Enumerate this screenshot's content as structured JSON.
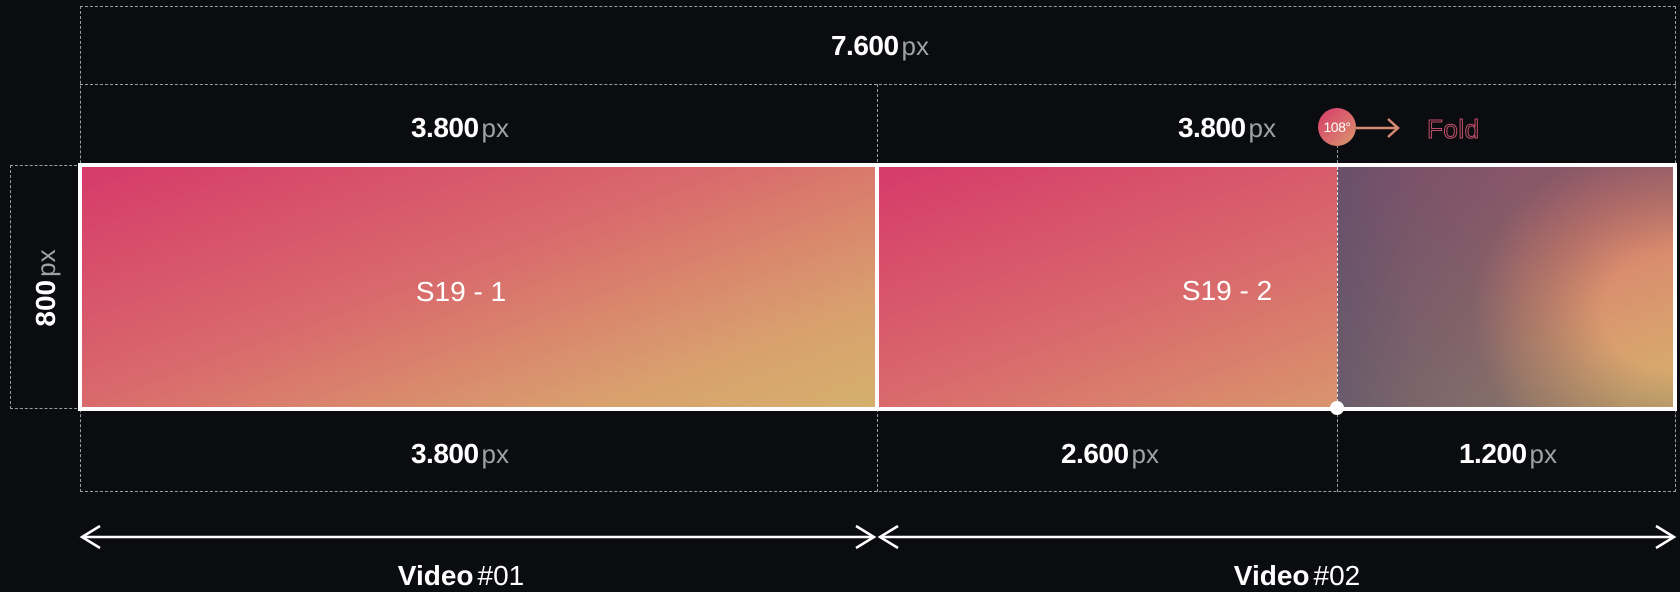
{
  "total_width": {
    "value": "7.600",
    "unit": "px"
  },
  "height": {
    "value": "800",
    "unit": "px"
  },
  "top_segments": [
    {
      "value": "3.800",
      "unit": "px"
    },
    {
      "value": "3.800",
      "unit": "px"
    }
  ],
  "fold": {
    "angle": "108°",
    "label": "Fold"
  },
  "panels": [
    {
      "label": "S19 - 1"
    },
    {
      "label": "S19 - 2"
    }
  ],
  "bottom_segments": [
    {
      "value": "3.800",
      "unit": "px"
    },
    {
      "value": "2.600",
      "unit": "px"
    },
    {
      "value": "1.200",
      "unit": "px"
    }
  ],
  "videos": [
    {
      "word": "Video",
      "tag": "#01"
    },
    {
      "word": "Video",
      "tag": "#02"
    }
  ],
  "colors": {
    "background": "#0b0c0f",
    "gradient_start": "#d63a6a",
    "gradient_end": "#d4b06c",
    "line": "#ffffff",
    "dashed": "#9a9ca2"
  }
}
